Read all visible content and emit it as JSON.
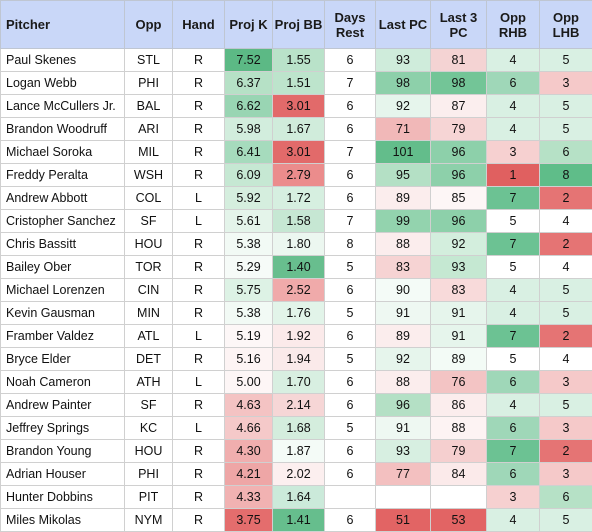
{
  "headers": [
    "Pitcher",
    "Opp",
    "Hand",
    "Proj K",
    "Proj BB",
    "Days Rest",
    "Last PC",
    "Last 3 PC",
    "Opp RHB",
    "Opp LHB"
  ],
  "rows": [
    [
      "Paul Skenes",
      "STL",
      "R",
      "7.52",
      "1.55",
      "6",
      "93",
      "81",
      "4",
      "5"
    ],
    [
      "Logan Webb",
      "PHI",
      "R",
      "6.37",
      "1.51",
      "7",
      "98",
      "98",
      "6",
      "3"
    ],
    [
      "Lance McCullers Jr.",
      "BAL",
      "R",
      "6.62",
      "3.01",
      "6",
      "92",
      "87",
      "4",
      "5"
    ],
    [
      "Brandon Woodruff",
      "ARI",
      "R",
      "5.98",
      "1.67",
      "6",
      "71",
      "79",
      "4",
      "5"
    ],
    [
      "Michael Soroka",
      "MIL",
      "R",
      "6.41",
      "3.01",
      "7",
      "101",
      "96",
      "3",
      "6"
    ],
    [
      "Freddy Peralta",
      "WSH",
      "R",
      "6.09",
      "2.79",
      "6",
      "95",
      "96",
      "1",
      "8"
    ],
    [
      "Andrew Abbott",
      "COL",
      "L",
      "5.92",
      "1.72",
      "6",
      "89",
      "85",
      "7",
      "2"
    ],
    [
      "Cristopher Sanchez",
      "SF",
      "L",
      "5.61",
      "1.58",
      "7",
      "99",
      "96",
      "5",
      "4"
    ],
    [
      "Chris Bassitt",
      "HOU",
      "R",
      "5.38",
      "1.80",
      "8",
      "88",
      "92",
      "7",
      "2"
    ],
    [
      "Bailey Ober",
      "TOR",
      "R",
      "5.29",
      "1.40",
      "5",
      "83",
      "93",
      "5",
      "4"
    ],
    [
      "Michael Lorenzen",
      "CIN",
      "R",
      "5.75",
      "2.52",
      "6",
      "90",
      "83",
      "4",
      "5"
    ],
    [
      "Kevin Gausman",
      "MIN",
      "R",
      "5.38",
      "1.76",
      "5",
      "91",
      "91",
      "4",
      "5"
    ],
    [
      "Framber Valdez",
      "ATL",
      "L",
      "5.19",
      "1.92",
      "6",
      "89",
      "91",
      "7",
      "2"
    ],
    [
      "Bryce Elder",
      "DET",
      "R",
      "5.16",
      "1.94",
      "5",
      "92",
      "89",
      "5",
      "4"
    ],
    [
      "Noah Cameron",
      "ATH",
      "L",
      "5.00",
      "1.70",
      "6",
      "88",
      "76",
      "6",
      "3"
    ],
    [
      "Andrew Painter",
      "SF",
      "R",
      "4.63",
      "2.14",
      "6",
      "96",
      "86",
      "4",
      "5"
    ],
    [
      "Jeffrey Springs",
      "KC",
      "L",
      "4.66",
      "1.68",
      "5",
      "91",
      "88",
      "6",
      "3"
    ],
    [
      "Brandon Young",
      "HOU",
      "R",
      "4.30",
      "1.87",
      "6",
      "93",
      "79",
      "7",
      "2"
    ],
    [
      "Adrian Houser",
      "PHI",
      "R",
      "4.21",
      "2.02",
      "6",
      "77",
      "84",
      "6",
      "3"
    ],
    [
      "Hunter Dobbins",
      "PIT",
      "R",
      "4.33",
      "1.64",
      "",
      "",
      "",
      "3",
      "6"
    ],
    [
      "Miles Mikolas",
      "NYM",
      "R",
      "3.75",
      "1.41",
      "6",
      "51",
      "53",
      "4",
      "5"
    ]
  ],
  "cell_colors": [
    [
      "",
      "",
      "",
      "#5cb985",
      "#b9e2c9",
      "",
      "#cfecdb",
      "#f4d3d3",
      "#d9f0e3",
      "#d9f0e3"
    ],
    [
      "",
      "",
      "",
      "#b6e1c6",
      "#bde4cc",
      "",
      "#8dd0aa",
      "#73c597",
      "#9fd7b8",
      "#f5c9c9"
    ],
    [
      "",
      "",
      "",
      "#99d5b3",
      "#e26a6a",
      "",
      "#e6f5ec",
      "#fbeeee",
      "#d9f0e3",
      "#d9f0e3"
    ],
    [
      "",
      "",
      "",
      "#d2eddd",
      "#d0ecdb",
      "",
      "#f1b8b8",
      "#f6d5d5",
      "#d9f0e3",
      "#d9f0e3"
    ],
    [
      "",
      "",
      "",
      "#a6dbbd",
      "#e26a6a",
      "",
      "#63bd8b",
      "#8dd0aa",
      "#f6d0d0",
      "#b6e1c6"
    ],
    [
      "",
      "",
      "",
      "#c6e8d3",
      "#eb8c8c",
      "",
      "#b4e0c5",
      "#8dd0aa",
      "#e06060",
      "#5fbd89"
    ],
    [
      "",
      "",
      "",
      "#d5eede",
      "#d6efe0",
      "",
      "#fbeded",
      "#fdf6f6",
      "#6cc293",
      "#e57474"
    ],
    [
      "",
      "",
      "",
      "#e4f4ea",
      "#c6e7d3",
      "",
      "#93d3ae",
      "#8dd0aa",
      "#ffffff",
      "#ffffff"
    ],
    [
      "",
      "",
      "",
      "#f2faf5",
      "#ecf7f0",
      "",
      "#fbeded",
      "#d3eedd",
      "#6cc293",
      "#e57474"
    ],
    [
      "",
      "",
      "",
      "#f6fbf8",
      "#68be8e",
      "",
      "#f6d3d3",
      "#c5e8d2",
      "#ffffff",
      "#ffffff"
    ],
    [
      "",
      "",
      "",
      "#ddf2e5",
      "#f0aaaa",
      "",
      "#f4fbf7",
      "#f8dada",
      "#d9f0e3",
      "#d9f0e3"
    ],
    [
      "",
      "",
      "",
      "#f2faf5",
      "#e2f4e9",
      "",
      "#eef8f2",
      "#e6f5ec",
      "#d9f0e3",
      "#d9f0e3"
    ],
    [
      "",
      "",
      "",
      "#fdf7f7",
      "#fbeaea",
      "",
      "#fbeded",
      "#e6f5ec",
      "#6cc293",
      "#e57474"
    ],
    [
      "",
      "",
      "",
      "#fdf4f4",
      "#faeaea",
      "",
      "#e6f5ec",
      "#f3fbf6",
      "#ffffff",
      "#ffffff"
    ],
    [
      "",
      "",
      "",
      "#fdf6f6",
      "#d8efe1",
      "",
      "#fbeded",
      "#f3c4c4",
      "#9fd7b8",
      "#f5c9c9"
    ],
    [
      "",
      "",
      "",
      "#f4c3c3",
      "#f6d6d6",
      "",
      "#b4e0c5",
      "#fbeded",
      "#d9f0e3",
      "#d9f0e3"
    ],
    [
      "",
      "",
      "",
      "#f5c9c9",
      "#d4eddd",
      "",
      "#eef8f2",
      "#fdf3f3",
      "#9fd7b8",
      "#f5c9c9"
    ],
    [
      "",
      "",
      "",
      "#f0aeae",
      "#f4fbf7",
      "",
      "#d7efe1",
      "#f5cfcf",
      "#6cc293",
      "#e57474"
    ],
    [
      "",
      "",
      "",
      "#eea6a6",
      "#fcefef",
      "",
      "#f3c0c0",
      "#fbeaea",
      "#9fd7b8",
      "#f5c9c9"
    ],
    [
      "",
      "",
      "",
      "#f1b2b2",
      "#cbeada",
      "",
      "#ffffff",
      "#ffffff",
      "#f6d0d0",
      "#b6e1c6"
    ],
    [
      "",
      "",
      "",
      "#e46d6d",
      "#66be8d",
      "",
      "#e26464",
      "#e26464",
      "#d9f0e3",
      "#d9f0e3"
    ]
  ]
}
